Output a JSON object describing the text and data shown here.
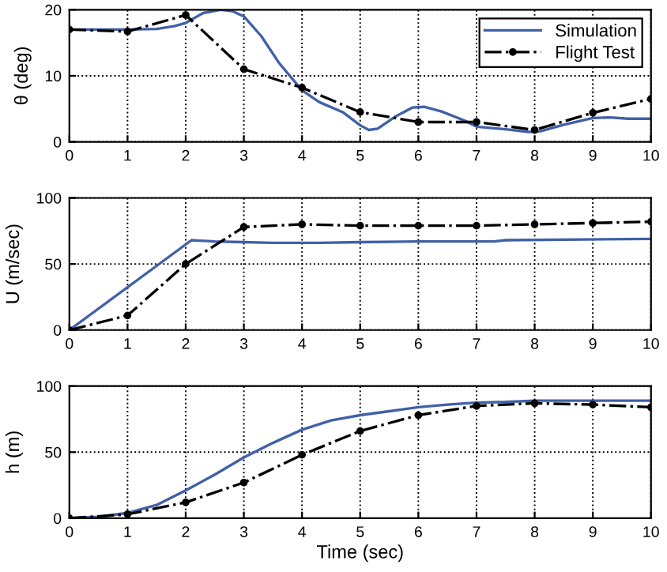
{
  "chart_data": [
    {
      "type": "line",
      "ylabel": "θ (deg)",
      "xlim": [
        0,
        10
      ],
      "xticks": [
        0,
        1,
        2,
        3,
        4,
        5,
        6,
        7,
        8,
        9,
        10
      ],
      "ylim": [
        0,
        20
      ],
      "yticks": [
        0,
        10,
        20
      ],
      "grid": true,
      "legend": "top right",
      "series": [
        {
          "name": "Simulation",
          "color": "#4060a8",
          "line_style": "solid",
          "marker": "none",
          "x": [
            0,
            0.5,
            1,
            1.5,
            1.8,
            2,
            2.3,
            2.6,
            2.8,
            3,
            3.3,
            3.6,
            4,
            4.3,
            4.7,
            5,
            5.15,
            5.3,
            5.6,
            5.9,
            6.1,
            6.4,
            6.8,
            7,
            7.5,
            7.9,
            8.1,
            8.5,
            9,
            9.3,
            9.6,
            10
          ],
          "values": [
            17,
            17,
            17,
            17.1,
            17.5,
            18,
            19.5,
            20,
            19.8,
            19,
            16,
            12,
            7.8,
            6,
            4.5,
            2.5,
            1.8,
            2,
            3.8,
            5.2,
            5.3,
            4.6,
            3.2,
            2.3,
            1.9,
            1.5,
            1.6,
            2.6,
            3.6,
            3.7,
            3.5,
            3.5
          ]
        },
        {
          "name": "Flight Test",
          "color": "#000000",
          "line_style": "dashdot",
          "marker": "circle",
          "x": [
            0,
            1,
            2,
            3,
            4,
            5,
            6,
            7,
            8,
            9,
            10
          ],
          "values": [
            17,
            16.7,
            19.2,
            11,
            8.2,
            4.5,
            3,
            3,
            1.8,
            4.4,
            6.5
          ]
        }
      ]
    },
    {
      "type": "line",
      "ylabel": "U (m/sec)",
      "xlim": [
        0,
        10
      ],
      "xticks": [
        0,
        1,
        2,
        3,
        4,
        5,
        6,
        7,
        8,
        9,
        10
      ],
      "ylim": [
        0,
        100
      ],
      "yticks": [
        0,
        50,
        100
      ],
      "grid": true,
      "series": [
        {
          "color": "#4060a8",
          "line_style": "solid",
          "marker": "none",
          "x": [
            0,
            2.1,
            2.5,
            3,
            3.5,
            4.3,
            5,
            6,
            7.3,
            7.5,
            10
          ],
          "values": [
            0,
            68,
            67,
            66.5,
            66,
            66,
            66.5,
            67,
            67,
            68,
            69
          ]
        },
        {
          "color": "#000000",
          "line_style": "dashdot",
          "marker": "circle",
          "x": [
            0,
            1,
            2,
            3,
            4,
            5,
            6,
            7,
            8,
            9,
            10
          ],
          "values": [
            0,
            11,
            50,
            78,
            80,
            79,
            79,
            79,
            80,
            81,
            82
          ]
        }
      ]
    },
    {
      "type": "line",
      "xlabel": "Time (sec)",
      "ylabel": "h (m)",
      "xlim": [
        0,
        10
      ],
      "xticks": [
        0,
        1,
        2,
        3,
        4,
        5,
        6,
        7,
        8,
        9,
        10
      ],
      "ylim": [
        0,
        100
      ],
      "yticks": [
        0,
        50,
        100
      ],
      "grid": true,
      "series": [
        {
          "color": "#4060a8",
          "line_style": "solid",
          "marker": "none",
          "x": [
            0,
            0.5,
            1,
            1.5,
            2,
            2.5,
            3,
            3.5,
            4,
            4.5,
            5,
            5.5,
            6,
            6.5,
            7,
            7.5,
            8,
            9,
            10
          ],
          "values": [
            0,
            1,
            4,
            10,
            21,
            33,
            46,
            57,
            67,
            74,
            78,
            81,
            84,
            86,
            87.5,
            88,
            89,
            89,
            89
          ]
        },
        {
          "color": "#000000",
          "line_style": "dashdot",
          "marker": "circle",
          "x": [
            0,
            1,
            2,
            3,
            4,
            5,
            6,
            7,
            8,
            9,
            10
          ],
          "values": [
            0,
            3,
            12,
            27,
            48,
            66,
            78,
            85,
            87,
            86,
            84
          ]
        }
      ]
    }
  ]
}
